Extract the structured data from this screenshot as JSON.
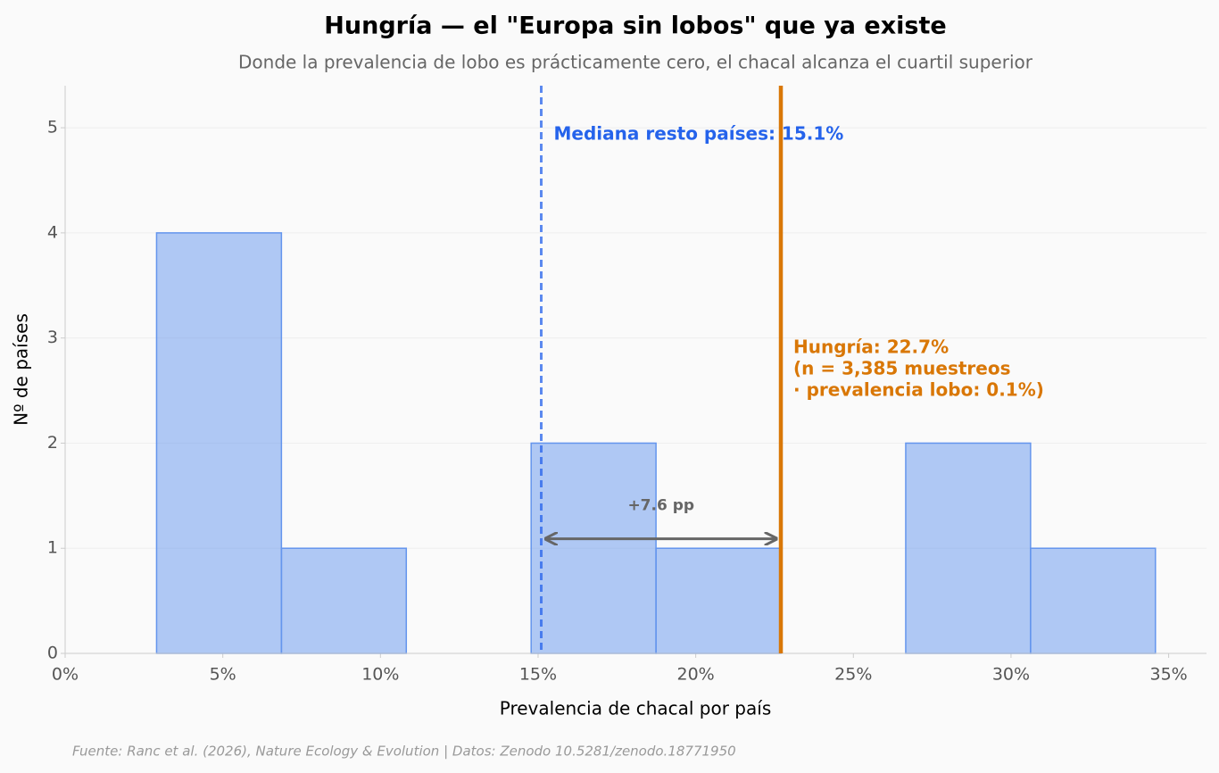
{
  "chart_data": {
    "type": "histogram",
    "title": "Hungría — el \"Europa sin lobos\" que ya existe",
    "subtitle": "Donde la prevalencia de lobo es prácticamente cero, el chacal alcanza el cuartil superior",
    "x_label": "Prevalencia de chacal por país",
    "y_label": "Nº de países",
    "bins": [
      2.9,
      6.86,
      10.82,
      14.78,
      18.74,
      22.7,
      26.66,
      30.62,
      34.58
    ],
    "values": [
      4,
      1,
      0,
      2,
      1,
      0,
      2,
      1
    ],
    "color": "#6495ed",
    "xlim": [
      0,
      36.2
    ],
    "ylim": [
      0,
      5.4
    ],
    "xticks": [
      {
        "value": 0,
        "label": "0%"
      },
      {
        "value": 5,
        "label": "5%"
      },
      {
        "value": 10,
        "label": "10%"
      },
      {
        "value": 15,
        "label": "15%"
      },
      {
        "value": 20,
        "label": "20%"
      },
      {
        "value": 25,
        "label": "25%"
      },
      {
        "value": 30,
        "label": "30%"
      },
      {
        "value": 35,
        "label": "35%"
      }
    ],
    "yticks": [
      0,
      1,
      2,
      3,
      4,
      5
    ],
    "grid": true,
    "reference_lines": [
      {
        "value": 15.1,
        "color": "#2563eb",
        "style": "dashed",
        "label_lines": [
          "Mediana resto países: 15.1%"
        ]
      },
      {
        "value": 22.7,
        "color": "#d97706",
        "style": "solid",
        "label_lines": [
          "Hungría: 22.7%",
          "(n = 3,385 muestreos",
          "· prevalencia lobo: 0.1%)"
        ]
      }
    ],
    "arrow": {
      "y": 1.09,
      "label": "+7.6 pp",
      "color": "#666666"
    },
    "source": "Fuente: Ranc et al. (2026), Nature Ecology & Evolution | Datos: Zenodo 10.5281/zenodo.18771950"
  }
}
